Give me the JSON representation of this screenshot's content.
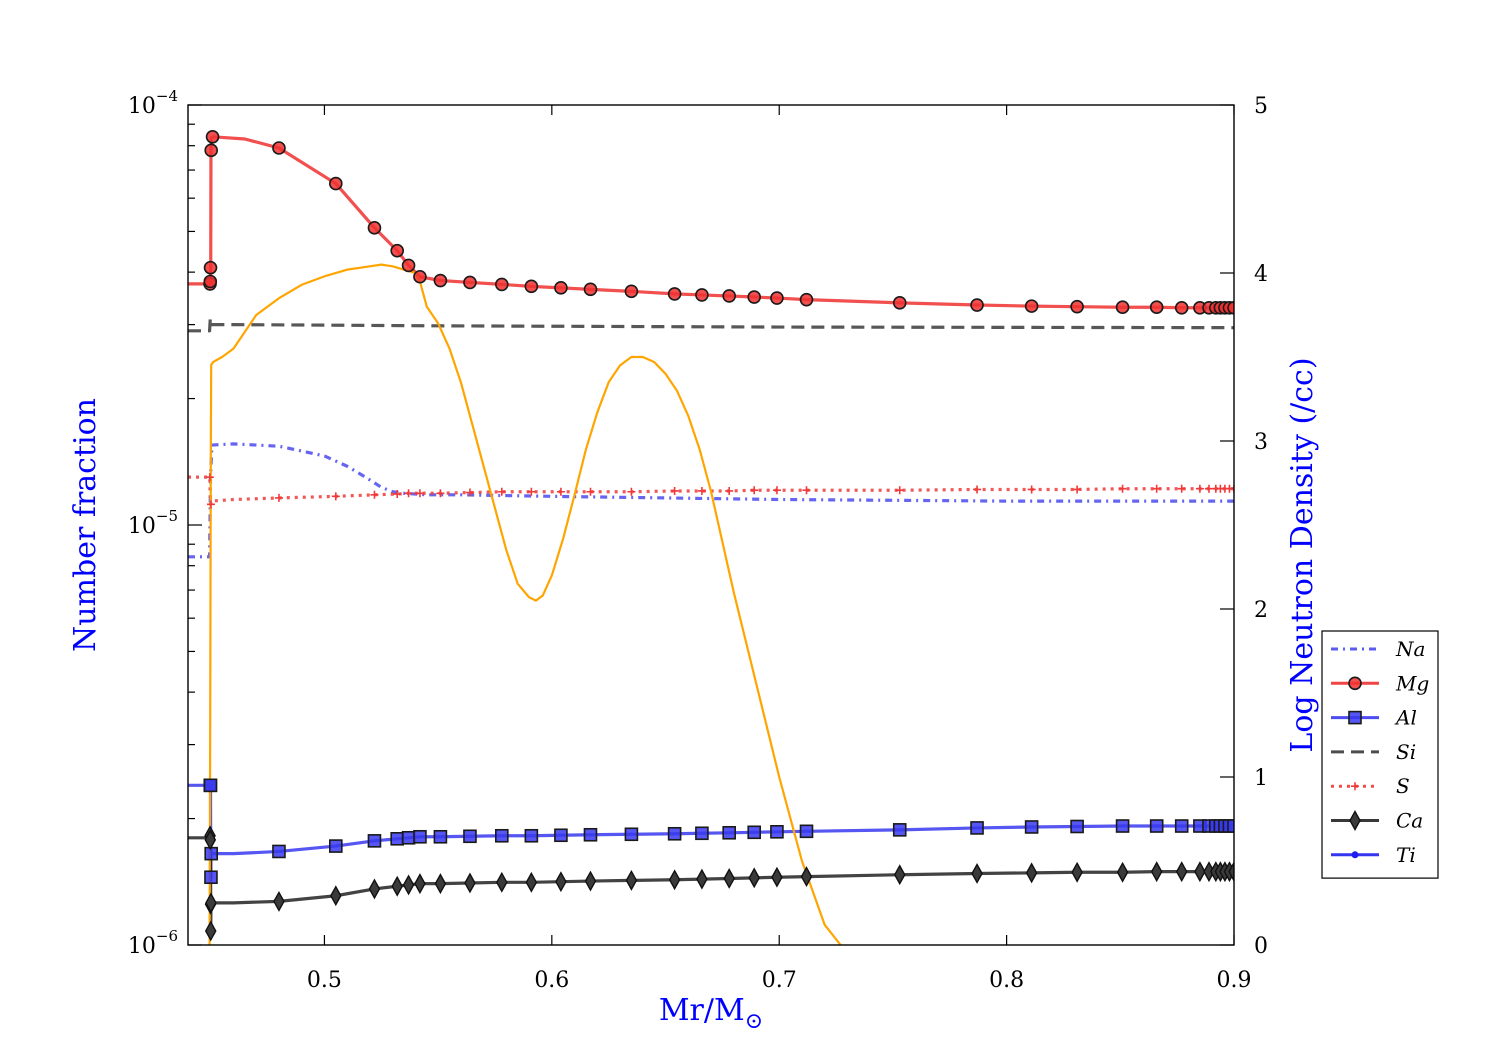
{
  "chart_data": {
    "type": "line",
    "xlabel": "Mr/M",
    "xlabel_sub": "⊙",
    "ylabel": "Number fraction",
    "y2label": "Log Neutron Density (/cc)",
    "xlim": [
      0.44,
      0.9
    ],
    "ylim": [
      1e-06,
      0.0001
    ],
    "yscale": "log",
    "y2lim": [
      0,
      5
    ],
    "x_ticks": [
      0.5,
      0.6,
      0.7,
      0.8,
      0.9
    ],
    "x_tick_labels": [
      "0.5",
      "0.6",
      "0.7",
      "0.8",
      "0.9"
    ],
    "y_tick_labels": [
      {
        "value": 0.0001,
        "base": "10",
        "exp": "−4"
      },
      {
        "value": 1e-05,
        "base": "10",
        "exp": "−5"
      },
      {
        "value": 1e-06,
        "base": "10",
        "exp": "−6"
      }
    ],
    "y2_ticks": [
      0,
      1,
      2,
      3,
      4,
      5
    ],
    "y2_tick_labels": [
      "0",
      "1",
      "2",
      "3",
      "4",
      "5"
    ],
    "legend_position": "right",
    "colors": {
      "orange": "#FFA500",
      "red": "#f01e1e",
      "blue": "#1e1ef0",
      "black": "#1a1a1a",
      "axis_title": "#0000ff"
    },
    "series": [
      {
        "name": "Na",
        "color": "#4a4af0",
        "dash": "7,5,2,5",
        "marker": "none",
        "x": [
          0.44,
          0.4495,
          0.4499,
          0.4505,
          0.46,
          0.47,
          0.48,
          0.49,
          0.5,
          0.505,
          0.51,
          0.515,
          0.52,
          0.525,
          0.53,
          0.535,
          0.54,
          0.545,
          0.55,
          0.56,
          0.58,
          0.6,
          0.65,
          0.7,
          0.8,
          0.9
        ],
        "y": [
          8.4e-06,
          8.4e-06,
          1.3e-05,
          1.55e-05,
          1.56e-05,
          1.55e-05,
          1.54e-05,
          1.5e-05,
          1.46e-05,
          1.42e-05,
          1.38e-05,
          1.33e-05,
          1.28e-05,
          1.23e-05,
          1.2e-05,
          1.19e-05,
          1.185e-05,
          1.18e-05,
          1.18e-05,
          1.18e-05,
          1.175e-05,
          1.17e-05,
          1.16e-05,
          1.15e-05,
          1.14e-05,
          1.14e-05
        ]
      },
      {
        "name": "Mg",
        "color": "#f03030",
        "dash": "",
        "marker": "circle",
        "x": [
          0.44,
          0.4497,
          0.4498,
          0.4499,
          0.45,
          0.4501,
          0.4503,
          0.451,
          0.465,
          0.48,
          0.505,
          0.522,
          0.532,
          0.537,
          0.542,
          0.551,
          0.564,
          0.578,
          0.591,
          0.604,
          0.617,
          0.635,
          0.654,
          0.666,
          0.678,
          0.689,
          0.699,
          0.712,
          0.753,
          0.787,
          0.811,
          0.831,
          0.851,
          0.866,
          0.877,
          0.885,
          0.889,
          0.892,
          0.894,
          0.896,
          0.898,
          0.9
        ],
        "y": [
          3.75e-05,
          3.75e-05,
          3.8e-05,
          3.95e-05,
          4.1e-05,
          7.8e-05,
          8.35e-05,
          8.4e-05,
          8.3e-05,
          7.9e-05,
          6.5e-05,
          5.1e-05,
          4.5e-05,
          4.15e-05,
          3.9e-05,
          3.82e-05,
          3.78e-05,
          3.74e-05,
          3.7e-05,
          3.67e-05,
          3.64e-05,
          3.6e-05,
          3.55e-05,
          3.53e-05,
          3.51e-05,
          3.49e-05,
          3.47e-05,
          3.44e-05,
          3.38e-05,
          3.34e-05,
          3.32e-05,
          3.31e-05,
          3.3e-05,
          3.3e-05,
          3.29e-05,
          3.29e-05,
          3.29e-05,
          3.29e-05,
          3.29e-05,
          3.29e-05,
          3.29e-05,
          3.29e-05
        ],
        "marker_x": [
          0.4497,
          0.4498,
          0.4499,
          0.4502,
          0.4508,
          0.48,
          0.505,
          0.522,
          0.532,
          0.537,
          0.542,
          0.551,
          0.564,
          0.578,
          0.591,
          0.604,
          0.617,
          0.635,
          0.654,
          0.666,
          0.678,
          0.689,
          0.699,
          0.712,
          0.753,
          0.787,
          0.811,
          0.831,
          0.851,
          0.866,
          0.877,
          0.885,
          0.889,
          0.892,
          0.894,
          0.896,
          0.898,
          0.9
        ],
        "marker_y": [
          3.75e-05,
          3.8e-05,
          4.1e-05,
          7.8e-05,
          8.4e-05,
          7.9e-05,
          6.5e-05,
          5.1e-05,
          4.5e-05,
          4.15e-05,
          3.9e-05,
          3.82e-05,
          3.78e-05,
          3.74e-05,
          3.7e-05,
          3.67e-05,
          3.64e-05,
          3.6e-05,
          3.55e-05,
          3.53e-05,
          3.51e-05,
          3.49e-05,
          3.47e-05,
          3.44e-05,
          3.38e-05,
          3.34e-05,
          3.32e-05,
          3.31e-05,
          3.3e-05,
          3.3e-05,
          3.29e-05,
          3.29e-05,
          3.29e-05,
          3.29e-05,
          3.29e-05,
          3.29e-05,
          3.29e-05,
          3.29e-05
        ]
      },
      {
        "name": "Al",
        "color": "#3838f0",
        "dash": "",
        "marker": "square",
        "x": [
          0.44,
          0.4499,
          0.45,
          0.4501,
          0.46,
          0.48,
          0.505,
          0.522,
          0.532,
          0.537,
          0.542,
          0.551,
          0.564,
          0.578,
          0.591,
          0.604,
          0.617,
          0.635,
          0.654,
          0.666,
          0.678,
          0.689,
          0.699,
          0.712,
          0.753,
          0.787,
          0.811,
          0.831,
          0.851,
          0.866,
          0.877,
          0.885,
          0.889,
          0.892,
          0.894,
          0.896,
          0.898,
          0.9
        ],
        "y": [
          2.4e-06,
          2.4e-06,
          1.45e-06,
          1.65e-06,
          1.65e-06,
          1.67e-06,
          1.72e-06,
          1.77e-06,
          1.79e-06,
          1.8e-06,
          1.81e-06,
          1.81e-06,
          1.815e-06,
          1.82e-06,
          1.82e-06,
          1.825e-06,
          1.83e-06,
          1.835e-06,
          1.84e-06,
          1.845e-06,
          1.85e-06,
          1.855e-06,
          1.86e-06,
          1.865e-06,
          1.88e-06,
          1.9e-06,
          1.91e-06,
          1.915e-06,
          1.92e-06,
          1.92e-06,
          1.92e-06,
          1.92e-06,
          1.92e-06,
          1.92e-06,
          1.92e-06,
          1.92e-06,
          1.92e-06,
          1.92e-06
        ],
        "marker_x": [
          0.4498,
          0.4499,
          0.4501,
          0.4502,
          0.48,
          0.505,
          0.522,
          0.532,
          0.537,
          0.542,
          0.551,
          0.564,
          0.578,
          0.591,
          0.604,
          0.617,
          0.635,
          0.654,
          0.666,
          0.678,
          0.689,
          0.699,
          0.712,
          0.753,
          0.787,
          0.811,
          0.831,
          0.851,
          0.866,
          0.877,
          0.885,
          0.889,
          0.892,
          0.894,
          0.896,
          0.898,
          0.9
        ],
        "marker_y": [
          2.4e-06,
          2.4e-06,
          1.45e-06,
          1.65e-06,
          1.67e-06,
          1.72e-06,
          1.77e-06,
          1.79e-06,
          1.8e-06,
          1.81e-06,
          1.81e-06,
          1.815e-06,
          1.82e-06,
          1.82e-06,
          1.825e-06,
          1.83e-06,
          1.835e-06,
          1.84e-06,
          1.845e-06,
          1.85e-06,
          1.855e-06,
          1.86e-06,
          1.865e-06,
          1.88e-06,
          1.9e-06,
          1.91e-06,
          1.915e-06,
          1.92e-06,
          1.92e-06,
          1.92e-06,
          1.92e-06,
          1.92e-06,
          1.92e-06,
          1.92e-06,
          1.92e-06,
          1.92e-06,
          1.92e-06
        ]
      },
      {
        "name": "Si",
        "color": "#3a3a3a",
        "dash": "13,7",
        "marker": "none",
        "x": [
          0.44,
          0.4495,
          0.4498,
          0.4502,
          0.46,
          0.55,
          0.7,
          0.9
        ],
        "y": [
          2.9e-05,
          2.9e-05,
          3.1e-05,
          3e-05,
          3e-05,
          2.98e-05,
          2.96e-05,
          2.95e-05
        ]
      },
      {
        "name": "S",
        "color": "#f03a3a",
        "dash": "3,5",
        "marker": "plus",
        "x": [
          0.44,
          0.4496,
          0.4499,
          0.4502,
          0.46,
          0.48,
          0.505,
          0.522,
          0.532,
          0.537,
          0.542,
          0.551,
          0.564,
          0.578,
          0.591,
          0.604,
          0.617,
          0.635,
          0.654,
          0.666,
          0.678,
          0.689,
          0.699,
          0.712,
          0.753,
          0.787,
          0.811,
          0.831,
          0.851,
          0.866,
          0.877,
          0.885,
          0.889,
          0.892,
          0.894,
          0.896,
          0.898,
          0.9
        ],
        "y": [
          1.3e-05,
          1.3e-05,
          1.12e-05,
          1.14e-05,
          1.15e-05,
          1.16e-05,
          1.17e-05,
          1.18e-05,
          1.185e-05,
          1.19e-05,
          1.19e-05,
          1.19e-05,
          1.195e-05,
          1.2e-05,
          1.2e-05,
          1.2e-05,
          1.2e-05,
          1.2e-05,
          1.205e-05,
          1.205e-05,
          1.205e-05,
          1.21e-05,
          1.21e-05,
          1.21e-05,
          1.21e-05,
          1.215e-05,
          1.215e-05,
          1.215e-05,
          1.22e-05,
          1.22e-05,
          1.22e-05,
          1.22e-05,
          1.22e-05,
          1.22e-05,
          1.22e-05,
          1.22e-05,
          1.22e-05,
          1.22e-05
        ],
        "marker_x": [
          0.4496,
          0.4501,
          0.48,
          0.505,
          0.522,
          0.532,
          0.537,
          0.542,
          0.551,
          0.564,
          0.578,
          0.591,
          0.604,
          0.617,
          0.635,
          0.654,
          0.666,
          0.678,
          0.689,
          0.699,
          0.712,
          0.753,
          0.787,
          0.811,
          0.831,
          0.851,
          0.866,
          0.877,
          0.885,
          0.889,
          0.892,
          0.894,
          0.896,
          0.898,
          0.9
        ],
        "marker_y": [
          1.3e-05,
          1.12e-05,
          1.16e-05,
          1.17e-05,
          1.18e-05,
          1.185e-05,
          1.19e-05,
          1.19e-05,
          1.19e-05,
          1.195e-05,
          1.2e-05,
          1.2e-05,
          1.2e-05,
          1.2e-05,
          1.2e-05,
          1.205e-05,
          1.205e-05,
          1.205e-05,
          1.21e-05,
          1.21e-05,
          1.21e-05,
          1.21e-05,
          1.215e-05,
          1.215e-05,
          1.215e-05,
          1.22e-05,
          1.22e-05,
          1.22e-05,
          1.22e-05,
          1.22e-05,
          1.22e-05,
          1.22e-05,
          1.22e-05,
          1.22e-05,
          1.22e-05
        ]
      },
      {
        "name": "Ca",
        "color": "#222222",
        "dash": "",
        "marker": "diamond",
        "x": [
          0.44,
          0.4499,
          0.45,
          0.4501,
          0.4502,
          0.46,
          0.48,
          0.505,
          0.522,
          0.532,
          0.537,
          0.542,
          0.551,
          0.564,
          0.578,
          0.591,
          0.604,
          0.617,
          0.635,
          0.654,
          0.666,
          0.678,
          0.689,
          0.699,
          0.712,
          0.753,
          0.787,
          0.811,
          0.831,
          0.851,
          0.866,
          0.877,
          0.885,
          0.889,
          0.892,
          0.894,
          0.896,
          0.898,
          0.9
        ],
        "y": [
          1.8e-06,
          1.8e-06,
          1.08e-06,
          1.25e-06,
          1.26e-06,
          1.26e-06,
          1.27e-06,
          1.31e-06,
          1.36e-06,
          1.38e-06,
          1.39e-06,
          1.4e-06,
          1.4e-06,
          1.405e-06,
          1.41e-06,
          1.41e-06,
          1.415e-06,
          1.42e-06,
          1.425e-06,
          1.43e-06,
          1.435e-06,
          1.44e-06,
          1.445e-06,
          1.45e-06,
          1.455e-06,
          1.47e-06,
          1.48e-06,
          1.485e-06,
          1.49e-06,
          1.49e-06,
          1.495e-06,
          1.495e-06,
          1.495e-06,
          1.495e-06,
          1.495e-06,
          1.495e-06,
          1.495e-06,
          1.495e-06,
          1.495e-06
        ],
        "marker_x": [
          0.4497,
          0.4498,
          0.4499,
          0.45,
          0.4501,
          0.48,
          0.505,
          0.522,
          0.532,
          0.537,
          0.542,
          0.551,
          0.564,
          0.578,
          0.591,
          0.604,
          0.617,
          0.635,
          0.654,
          0.666,
          0.678,
          0.689,
          0.699,
          0.712,
          0.753,
          0.787,
          0.811,
          0.831,
          0.851,
          0.866,
          0.877,
          0.885,
          0.889,
          0.892,
          0.894,
          0.896,
          0.898,
          0.9
        ],
        "marker_y": [
          1.82e-06,
          1.78e-06,
          1.25e-06,
          1.08e-06,
          1.26e-06,
          1.27e-06,
          1.31e-06,
          1.36e-06,
          1.38e-06,
          1.39e-06,
          1.4e-06,
          1.4e-06,
          1.405e-06,
          1.41e-06,
          1.41e-06,
          1.415e-06,
          1.42e-06,
          1.425e-06,
          1.43e-06,
          1.435e-06,
          1.44e-06,
          1.445e-06,
          1.45e-06,
          1.455e-06,
          1.47e-06,
          1.48e-06,
          1.485e-06,
          1.49e-06,
          1.49e-06,
          1.495e-06,
          1.495e-06,
          1.495e-06,
          1.495e-06,
          1.495e-06,
          1.495e-06,
          1.495e-06,
          1.495e-06,
          1.495e-06
        ]
      },
      {
        "name": "Ti",
        "color": "#1e1ef0",
        "dash": "",
        "marker": "dot",
        "x": [],
        "y": []
      }
    ],
    "neutron_density": {
      "axis": "right",
      "color": "#FFA500",
      "x": [
        0.4495,
        0.4498,
        0.45,
        0.4502,
        0.4504,
        0.4506,
        0.451,
        0.455,
        0.46,
        0.47,
        0.48,
        0.49,
        0.5,
        0.51,
        0.52,
        0.525,
        0.53,
        0.535,
        0.54,
        0.542,
        0.543,
        0.545,
        0.55,
        0.555,
        0.56,
        0.565,
        0.57,
        0.575,
        0.58,
        0.585,
        0.59,
        0.593,
        0.596,
        0.6,
        0.605,
        0.61,
        0.615,
        0.62,
        0.625,
        0.63,
        0.635,
        0.64,
        0.645,
        0.65,
        0.655,
        0.66,
        0.665,
        0.67,
        0.675,
        0.68,
        0.69,
        0.7,
        0.71,
        0.72,
        0.727
      ],
      "y": [
        0.0,
        1.5,
        2.8,
        3.45,
        3.46,
        3.46,
        3.47,
        3.5,
        3.55,
        3.75,
        3.85,
        3.93,
        3.98,
        4.02,
        4.04,
        4.05,
        4.04,
        4.02,
        4.0,
        3.95,
        3.9,
        3.8,
        3.7,
        3.55,
        3.35,
        3.1,
        2.85,
        2.6,
        2.35,
        2.15,
        2.07,
        2.05,
        2.08,
        2.2,
        2.42,
        2.68,
        2.95,
        3.17,
        3.35,
        3.45,
        3.5,
        3.5,
        3.47,
        3.4,
        3.3,
        3.15,
        2.95,
        2.7,
        2.4,
        2.1,
        1.55,
        1.0,
        0.5,
        0.12,
        0.0
      ]
    }
  }
}
